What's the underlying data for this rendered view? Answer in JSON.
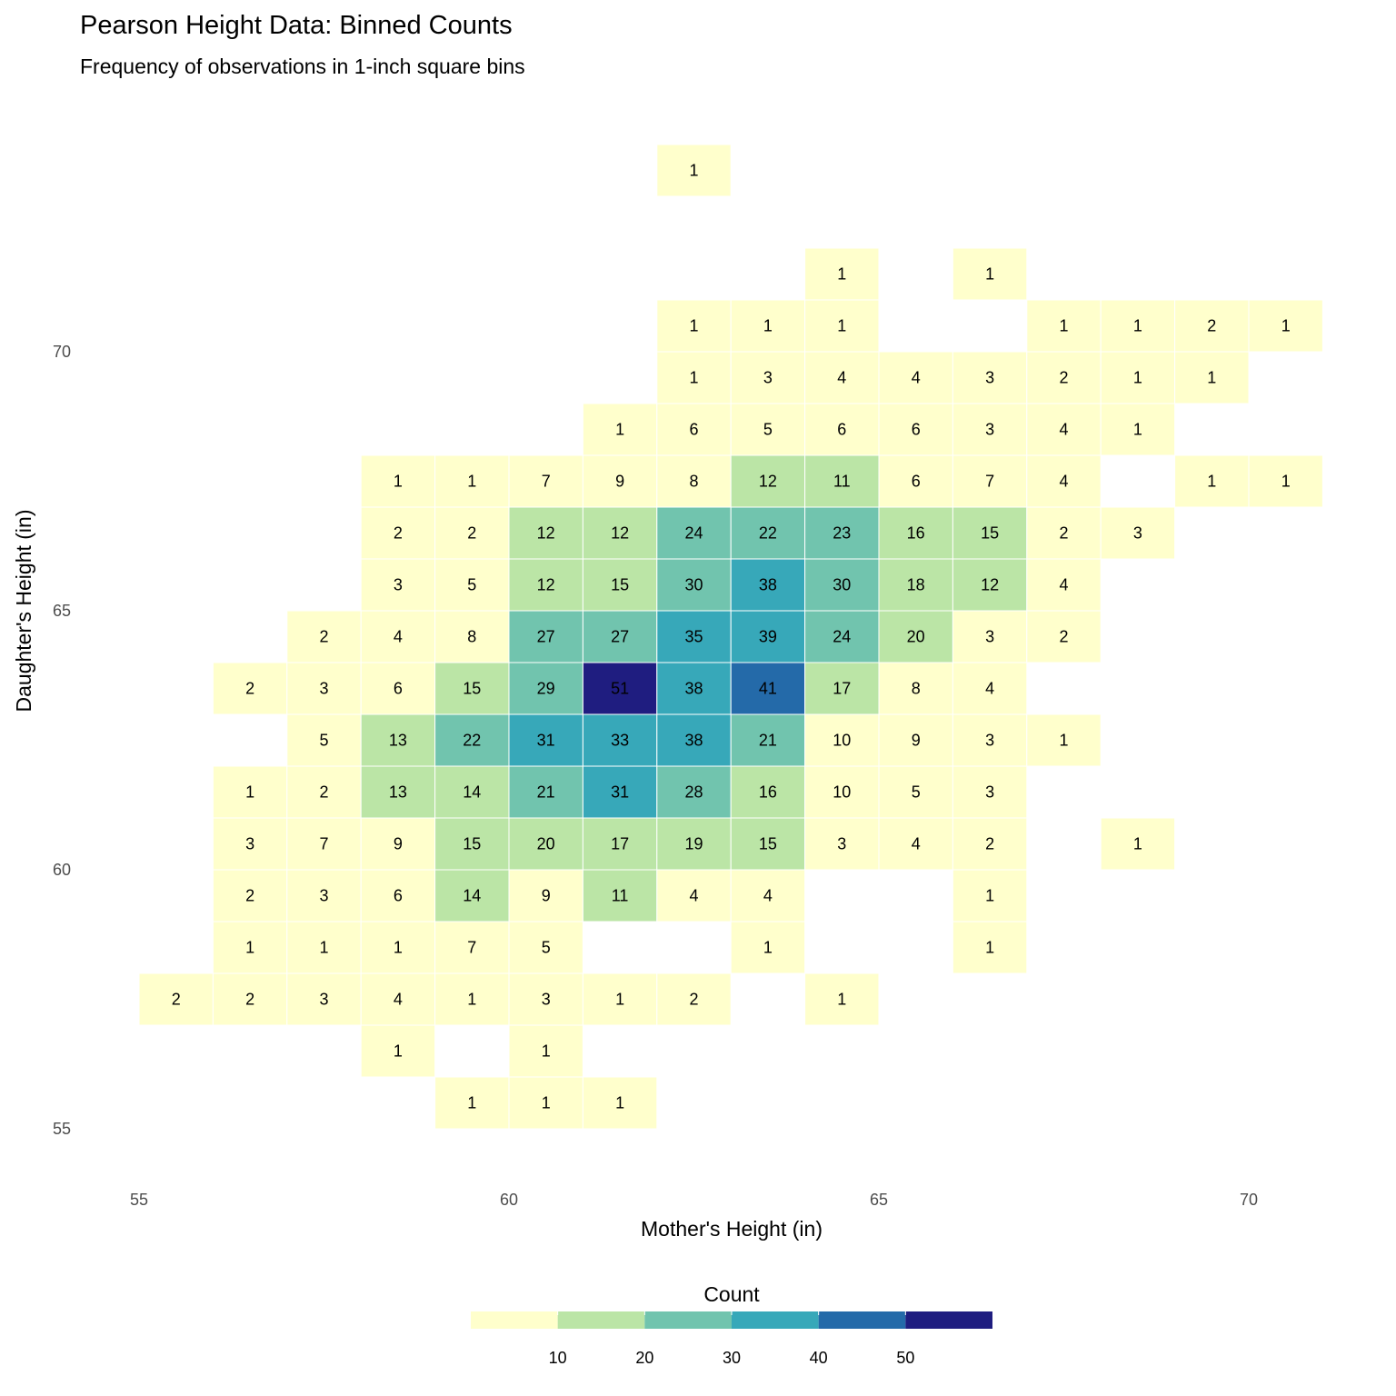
{
  "chart_data": {
    "type": "heatmap",
    "title": "Pearson Height Data: Binned Counts",
    "subtitle": "Frequency of observations in 1-inch square bins",
    "xlabel": "Mother's Height (in)",
    "ylabel": "Daughter's Height (in)",
    "xlim": [
      55,
      71
    ],
    "ylim": [
      55,
      74
    ],
    "x_ticks": [
      55,
      60,
      65,
      70
    ],
    "y_ticks": [
      55,
      60,
      65,
      70
    ],
    "bin_width": 1,
    "grid": false,
    "legend": {
      "title": "Count",
      "placement": "bottom",
      "breaks": [
        10,
        20,
        30,
        40,
        50
      ],
      "range": [
        0,
        60
      ],
      "colors": [
        "#ffffcc",
        "#bbe5a6",
        "#71c4ae",
        "#37a8b9",
        "#246aa9",
        "#1f1d80"
      ]
    },
    "cells_columns": [
      "mother_bin_center",
      "daughter_bin_center",
      "count"
    ],
    "cells": [
      [
        62.5,
        73.5,
        1
      ],
      [
        64.5,
        71.5,
        1
      ],
      [
        66.5,
        71.5,
        1
      ],
      [
        62.5,
        70.5,
        1
      ],
      [
        63.5,
        70.5,
        1
      ],
      [
        64.5,
        70.5,
        1
      ],
      [
        67.5,
        70.5,
        1
      ],
      [
        68.5,
        70.5,
        1
      ],
      [
        69.5,
        70.5,
        2
      ],
      [
        70.5,
        70.5,
        1
      ],
      [
        62.5,
        69.5,
        1
      ],
      [
        63.5,
        69.5,
        3
      ],
      [
        64.5,
        69.5,
        4
      ],
      [
        65.5,
        69.5,
        4
      ],
      [
        66.5,
        69.5,
        3
      ],
      [
        67.5,
        69.5,
        2
      ],
      [
        68.5,
        69.5,
        1
      ],
      [
        69.5,
        69.5,
        1
      ],
      [
        61.5,
        68.5,
        1
      ],
      [
        62.5,
        68.5,
        6
      ],
      [
        63.5,
        68.5,
        5
      ],
      [
        64.5,
        68.5,
        6
      ],
      [
        65.5,
        68.5,
        6
      ],
      [
        66.5,
        68.5,
        3
      ],
      [
        67.5,
        68.5,
        4
      ],
      [
        68.5,
        68.5,
        1
      ],
      [
        58.5,
        67.5,
        1
      ],
      [
        59.5,
        67.5,
        1
      ],
      [
        60.5,
        67.5,
        7
      ],
      [
        61.5,
        67.5,
        9
      ],
      [
        62.5,
        67.5,
        8
      ],
      [
        63.5,
        67.5,
        12
      ],
      [
        64.5,
        67.5,
        11
      ],
      [
        65.5,
        67.5,
        6
      ],
      [
        66.5,
        67.5,
        7
      ],
      [
        67.5,
        67.5,
        4
      ],
      [
        69.5,
        67.5,
        1
      ],
      [
        70.5,
        67.5,
        1
      ],
      [
        58.5,
        66.5,
        2
      ],
      [
        59.5,
        66.5,
        2
      ],
      [
        60.5,
        66.5,
        12
      ],
      [
        61.5,
        66.5,
        12
      ],
      [
        62.5,
        66.5,
        24
      ],
      [
        63.5,
        66.5,
        22
      ],
      [
        64.5,
        66.5,
        23
      ],
      [
        65.5,
        66.5,
        16
      ],
      [
        66.5,
        66.5,
        15
      ],
      [
        67.5,
        66.5,
        2
      ],
      [
        68.5,
        66.5,
        3
      ],
      [
        58.5,
        65.5,
        3
      ],
      [
        59.5,
        65.5,
        5
      ],
      [
        60.5,
        65.5,
        12
      ],
      [
        61.5,
        65.5,
        15
      ],
      [
        62.5,
        65.5,
        30
      ],
      [
        63.5,
        65.5,
        38
      ],
      [
        64.5,
        65.5,
        30
      ],
      [
        65.5,
        65.5,
        18
      ],
      [
        66.5,
        65.5,
        12
      ],
      [
        67.5,
        65.5,
        4
      ],
      [
        57.5,
        64.5,
        2
      ],
      [
        58.5,
        64.5,
        4
      ],
      [
        59.5,
        64.5,
        8
      ],
      [
        60.5,
        64.5,
        27
      ],
      [
        61.5,
        64.5,
        27
      ],
      [
        62.5,
        64.5,
        35
      ],
      [
        63.5,
        64.5,
        39
      ],
      [
        64.5,
        64.5,
        24
      ],
      [
        65.5,
        64.5,
        20
      ],
      [
        66.5,
        64.5,
        3
      ],
      [
        67.5,
        64.5,
        2
      ],
      [
        56.5,
        63.5,
        2
      ],
      [
        57.5,
        63.5,
        3
      ],
      [
        58.5,
        63.5,
        6
      ],
      [
        59.5,
        63.5,
        15
      ],
      [
        60.5,
        63.5,
        29
      ],
      [
        61.5,
        63.5,
        51
      ],
      [
        62.5,
        63.5,
        38
      ],
      [
        63.5,
        63.5,
        41
      ],
      [
        64.5,
        63.5,
        17
      ],
      [
        65.5,
        63.5,
        8
      ],
      [
        66.5,
        63.5,
        4
      ],
      [
        57.5,
        62.5,
        5
      ],
      [
        58.5,
        62.5,
        13
      ],
      [
        59.5,
        62.5,
        22
      ],
      [
        60.5,
        62.5,
        31
      ],
      [
        61.5,
        62.5,
        33
      ],
      [
        62.5,
        62.5,
        38
      ],
      [
        63.5,
        62.5,
        21
      ],
      [
        64.5,
        62.5,
        10
      ],
      [
        65.5,
        62.5,
        9
      ],
      [
        66.5,
        62.5,
        3
      ],
      [
        67.5,
        62.5,
        1
      ],
      [
        56.5,
        61.5,
        1
      ],
      [
        57.5,
        61.5,
        2
      ],
      [
        58.5,
        61.5,
        13
      ],
      [
        59.5,
        61.5,
        14
      ],
      [
        60.5,
        61.5,
        21
      ],
      [
        61.5,
        61.5,
        31
      ],
      [
        62.5,
        61.5,
        28
      ],
      [
        63.5,
        61.5,
        16
      ],
      [
        64.5,
        61.5,
        10
      ],
      [
        65.5,
        61.5,
        5
      ],
      [
        66.5,
        61.5,
        3
      ],
      [
        56.5,
        60.5,
        3
      ],
      [
        57.5,
        60.5,
        7
      ],
      [
        58.5,
        60.5,
        9
      ],
      [
        59.5,
        60.5,
        15
      ],
      [
        60.5,
        60.5,
        20
      ],
      [
        61.5,
        60.5,
        17
      ],
      [
        62.5,
        60.5,
        19
      ],
      [
        63.5,
        60.5,
        15
      ],
      [
        64.5,
        60.5,
        3
      ],
      [
        65.5,
        60.5,
        4
      ],
      [
        66.5,
        60.5,
        2
      ],
      [
        68.5,
        60.5,
        1
      ],
      [
        56.5,
        59.5,
        2
      ],
      [
        57.5,
        59.5,
        3
      ],
      [
        58.5,
        59.5,
        6
      ],
      [
        59.5,
        59.5,
        14
      ],
      [
        60.5,
        59.5,
        9
      ],
      [
        61.5,
        59.5,
        11
      ],
      [
        62.5,
        59.5,
        4
      ],
      [
        63.5,
        59.5,
        4
      ],
      [
        66.5,
        59.5,
        1
      ],
      [
        56.5,
        58.5,
        1
      ],
      [
        57.5,
        58.5,
        1
      ],
      [
        58.5,
        58.5,
        1
      ],
      [
        59.5,
        58.5,
        7
      ],
      [
        60.5,
        58.5,
        5
      ],
      [
        63.5,
        58.5,
        1
      ],
      [
        66.5,
        58.5,
        1
      ],
      [
        55.5,
        57.5,
        2
      ],
      [
        56.5,
        57.5,
        2
      ],
      [
        57.5,
        57.5,
        3
      ],
      [
        58.5,
        57.5,
        4
      ],
      [
        59.5,
        57.5,
        1
      ],
      [
        60.5,
        57.5,
        3
      ],
      [
        61.5,
        57.5,
        1
      ],
      [
        62.5,
        57.5,
        2
      ],
      [
        64.5,
        57.5,
        1
      ],
      [
        58.5,
        56.5,
        1
      ],
      [
        60.5,
        56.5,
        1
      ],
      [
        59.5,
        55.5,
        1
      ],
      [
        60.5,
        55.5,
        1
      ],
      [
        61.5,
        55.5,
        1
      ]
    ]
  }
}
